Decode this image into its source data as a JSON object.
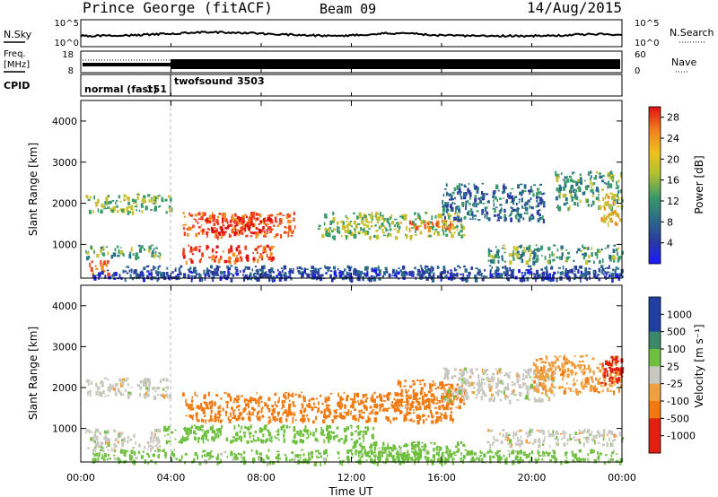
{
  "header": {
    "station": "Prince George (fitACF)",
    "beam": "Beam 09",
    "date": "14/Aug/2015"
  },
  "top_panels": {
    "nsky": {
      "label": "N.Sky",
      "left_ticks": [
        "10^5",
        "10^0"
      ],
      "right_ticks": [
        "10^5",
        "10^0"
      ],
      "right_label": "N.Search"
    },
    "freq": {
      "label_line1": "Freq.",
      "label_line2": "[MHz]",
      "left_ticks": [
        "18",
        "8"
      ],
      "right_ticks": [
        "60",
        "0"
      ],
      "right_label": "Nave"
    },
    "cpid": {
      "label": "CPID",
      "segments": [
        {
          "name": "normal (fast)",
          "id": "151",
          "start_hour": 0,
          "end_hour": 4
        },
        {
          "name": "twofsound",
          "id": "3503",
          "start_hour": 4,
          "end_hour": 24
        }
      ]
    }
  },
  "x_axis": {
    "label": "Time UT",
    "ticks": [
      "00:00",
      "04:00",
      "08:00",
      "12:00",
      "16:00",
      "20:00",
      "00:00"
    ],
    "range_hours": [
      0,
      24
    ]
  },
  "y_axis": {
    "label": "Slant Range [km]",
    "ticks": [
      "1000",
      "2000",
      "3000",
      "4000"
    ],
    "range_km": [
      180,
      4500
    ]
  },
  "power_colorbar": {
    "label": "Power [dB]",
    "ticks": [
      "28",
      "24",
      "20",
      "16",
      "12",
      "8",
      "4"
    ],
    "range_db": [
      0,
      30
    ]
  },
  "velocity_colorbar": {
    "label": "Velocity [m s⁻¹]",
    "ticks": [
      "1000",
      "500",
      "100",
      "25",
      "-25",
      "-100",
      "-500",
      "-1000"
    ]
  },
  "chart_data": [
    {
      "type": "heatmap",
      "quantity": "power_db",
      "x_range_hours": [
        0,
        24
      ],
      "y_range_km": [
        180,
        4500
      ],
      "regions": [
        {
          "t0": 0.2,
          "t1": 4.0,
          "r0": 1800,
          "r1": 2250,
          "level": 16
        },
        {
          "t0": 0.2,
          "t1": 3.5,
          "r0": 700,
          "r1": 1000,
          "level": 14
        },
        {
          "t0": 0.3,
          "t1": 1.2,
          "r0": 300,
          "r1": 650,
          "level": 24
        },
        {
          "t0": 4.5,
          "t1": 9.5,
          "r0": 1200,
          "r1": 1800,
          "level": 24
        },
        {
          "t0": 4.5,
          "t1": 8.5,
          "r0": 600,
          "r1": 1000,
          "level": 26
        },
        {
          "t0": 5.5,
          "t1": 8.5,
          "r0": 1300,
          "r1": 1700,
          "level": 29
        },
        {
          "t0": 10.5,
          "t1": 17.0,
          "r0": 1200,
          "r1": 1800,
          "level": 16
        },
        {
          "t0": 14.0,
          "t1": 16.5,
          "r0": 1400,
          "r1": 1600,
          "level": 24
        },
        {
          "t0": 16.0,
          "t1": 20.5,
          "r0": 1600,
          "r1": 2500,
          "level": 10
        },
        {
          "t0": 18.0,
          "t1": 24.0,
          "r0": 600,
          "r1": 1000,
          "level": 14
        },
        {
          "t0": 21.0,
          "t1": 24.0,
          "r0": 1900,
          "r1": 2800,
          "level": 14
        },
        {
          "t0": 23.0,
          "t1": 24.0,
          "r0": 1500,
          "r1": 2200,
          "level": 20
        },
        {
          "t0": 2.0,
          "t1": 24.0,
          "r0": 180,
          "r1": 500,
          "level": 8
        },
        {
          "t0": 0.5,
          "t1": 24.0,
          "r0": 180,
          "r1": 400,
          "level": 6
        }
      ]
    },
    {
      "type": "heatmap",
      "quantity": "velocity_mps",
      "x_range_hours": [
        0,
        24
      ],
      "y_range_km": [
        180,
        4500
      ],
      "regions": [
        {
          "t0": 0.2,
          "t1": 4.0,
          "r0": 1800,
          "r1": 2250,
          "level": 0
        },
        {
          "t0": 0.2,
          "t1": 3.5,
          "r0": 500,
          "r1": 1000,
          "level": 0
        },
        {
          "t0": 4.5,
          "t1": 16.5,
          "r0": 1200,
          "r1": 1900,
          "level": -250
        },
        {
          "t0": 14.0,
          "t1": 17.0,
          "r0": 1500,
          "r1": 2200,
          "level": -400
        },
        {
          "t0": 3.5,
          "t1": 13.0,
          "r0": 700,
          "r1": 1100,
          "level": 60
        },
        {
          "t0": 12.0,
          "t1": 17.0,
          "r0": 200,
          "r1": 700,
          "level": 60
        },
        {
          "t0": 16.0,
          "t1": 21.0,
          "r0": 1700,
          "r1": 2500,
          "level": 0
        },
        {
          "t0": 20.0,
          "t1": 24.0,
          "r0": 1900,
          "r1": 2800,
          "level": -80
        },
        {
          "t0": 23.0,
          "t1": 24.0,
          "r0": 2100,
          "r1": 2800,
          "level": -700
        },
        {
          "t0": 18.0,
          "t1": 24.0,
          "r0": 600,
          "r1": 1000,
          "level": 0
        },
        {
          "t0": 0.5,
          "t1": 24.0,
          "r0": 180,
          "r1": 500,
          "level": 50
        }
      ]
    }
  ]
}
